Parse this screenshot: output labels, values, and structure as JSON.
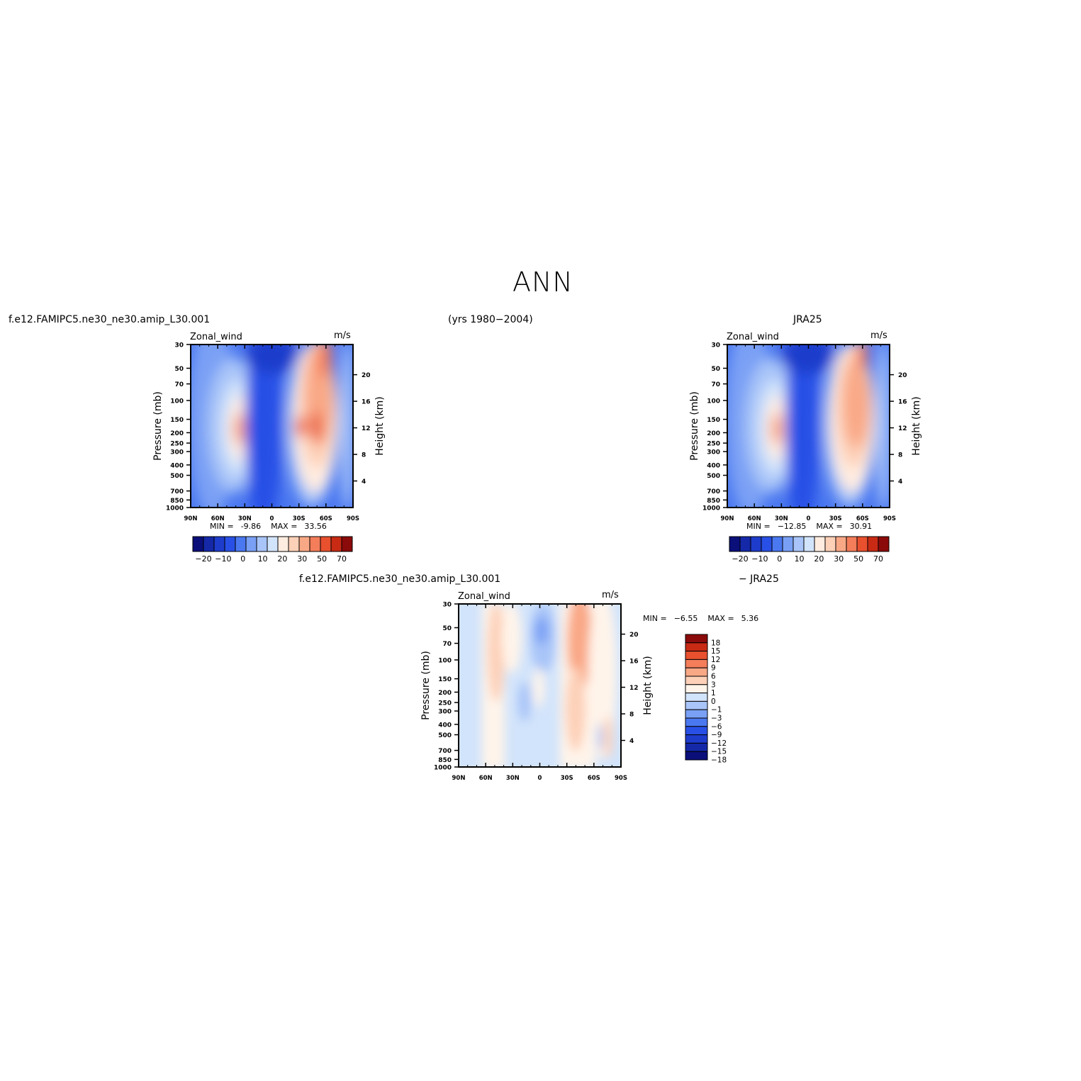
{
  "page": {
    "title": "ANN",
    "case_label": "f.e12.FAMIPC5.ne30_ne30.amip_L30.001",
    "years_label": "(yrs 1980−2004)",
    "obs_label": "JRA25",
    "diff_case_label": "f.e12.FAMIPC5.ne30_ne30.amip_L30.001",
    "diff_obs_label": "− JRA25"
  },
  "colors": {
    "field_scale": [
      "#0a0f7a",
      "#1428a8",
      "#1e3ccc",
      "#2850e6",
      "#4a78f0",
      "#7aa0f5",
      "#a8c4f8",
      "#d2e4fb",
      "#ffece0",
      "#fdd0b8",
      "#f9a886",
      "#f47d5a",
      "#e8502e",
      "#c82a14",
      "#8b0a0a"
    ],
    "diff_scale": [
      "#0a0f7a",
      "#1428a8",
      "#1e3ccc",
      "#2850e6",
      "#4a78f0",
      "#7aa0f5",
      "#a8c4f8",
      "#d2e4fb",
      "#fff4ea",
      "#fdd0b8",
      "#f9a886",
      "#f47d5a",
      "#e8502e",
      "#c82a14",
      "#8b0a0a"
    ]
  },
  "chart_data": [
    {
      "type": "heatmap",
      "id": "model",
      "title": "Zonal_wind",
      "units": "m/s",
      "ylabel": "Pressure (mb)",
      "y2label": "Height (km)",
      "x_ticks": [
        "90N",
        "60N",
        "30N",
        "0",
        "30S",
        "60S",
        "90S"
      ],
      "y_ticks": [
        "30",
        "50",
        "70",
        "100",
        "150",
        "200",
        "250",
        "300",
        "400",
        "500",
        "700",
        "850",
        "1000"
      ],
      "y2_ticks": [
        "20",
        "16",
        "12",
        "8",
        "4"
      ],
      "min_label": "MIN =",
      "min": "-9.86",
      "max_label": "MAX =",
      "max": "33.56",
      "colorbar_labels": [
        "−20",
        "−10",
        "0",
        "10",
        "20",
        "30",
        "50",
        "70"
      ]
    },
    {
      "type": "heatmap",
      "id": "obs",
      "title": "Zonal_wind",
      "units": "m/s",
      "ylabel": "Pressure (mb)",
      "y2label": "Height (km)",
      "x_ticks": [
        "90N",
        "60N",
        "30N",
        "0",
        "30S",
        "60S",
        "90S"
      ],
      "y_ticks": [
        "30",
        "50",
        "70",
        "100",
        "150",
        "200",
        "250",
        "300",
        "400",
        "500",
        "700",
        "850",
        "1000"
      ],
      "y2_ticks": [
        "20",
        "16",
        "12",
        "8",
        "4"
      ],
      "min_label": "MIN =",
      "min": "−12.85",
      "max_label": "MAX =",
      "max": "30.91",
      "colorbar_labels": [
        "−20",
        "−10",
        "0",
        "10",
        "20",
        "30",
        "50",
        "70"
      ]
    },
    {
      "type": "heatmap",
      "id": "diff",
      "title": "Zonal_wind",
      "units": "m/s",
      "ylabel": "Pressure (mb)",
      "y2label": "Height (km)",
      "x_ticks": [
        "90N",
        "60N",
        "30N",
        "0",
        "30S",
        "60S",
        "90S"
      ],
      "y_ticks": [
        "30",
        "50",
        "70",
        "100",
        "150",
        "200",
        "250",
        "300",
        "400",
        "500",
        "700",
        "850",
        "1000"
      ],
      "y2_ticks": [
        "20",
        "16",
        "12",
        "8",
        "4"
      ],
      "min_label": "MIN =",
      "min": "−6.55",
      "max_label": "MAX =",
      "max": "5.36",
      "colorbar_labels": [
        "18",
        "15",
        "12",
        "9",
        "6",
        "3",
        "1",
        "0",
        "−1",
        "−3",
        "−6",
        "−9",
        "−12",
        "−15",
        "−18"
      ]
    }
  ]
}
